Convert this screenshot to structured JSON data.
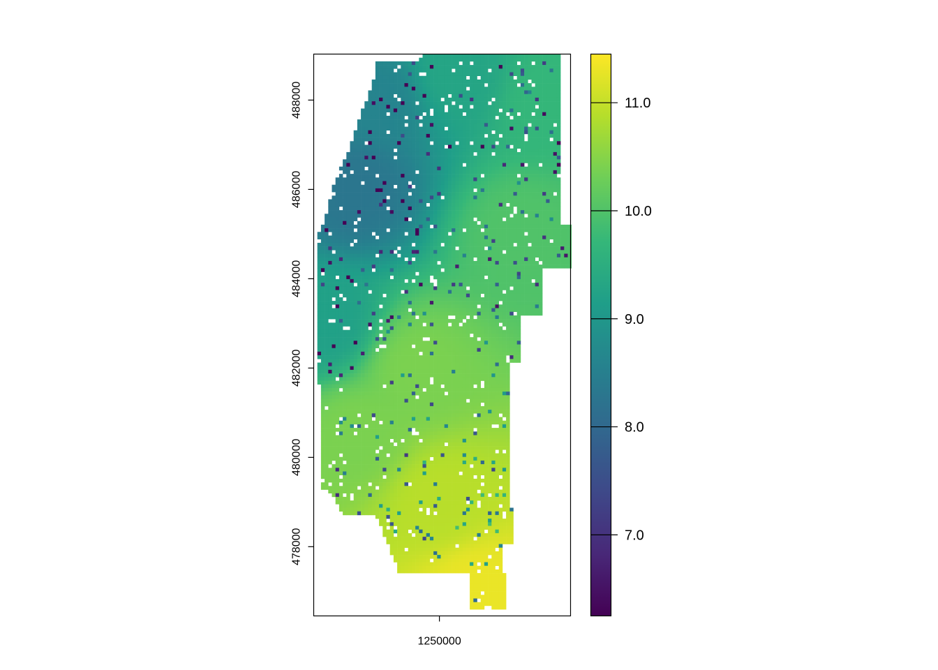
{
  "chart_data": {
    "type": "heatmap",
    "title": "",
    "xlabel": "",
    "ylabel": "",
    "xlim": [
      1222300,
      1278900
    ],
    "ylim": [
      476450,
      489030
    ],
    "x_ticks": [
      {
        "value": 1250000,
        "label": "1250000"
      }
    ],
    "y_ticks": [
      {
        "value": 478000,
        "label": "478000"
      },
      {
        "value": 480000,
        "label": "480000"
      },
      {
        "value": 482000,
        "label": "482000"
      },
      {
        "value": 484000,
        "label": "484000"
      },
      {
        "value": 486000,
        "label": "486000"
      },
      {
        "value": 488000,
        "label": "488000"
      }
    ],
    "colorbar": {
      "range": [
        6.25,
        11.45
      ],
      "ticks": [
        {
          "value": 7.0,
          "label": "7.0"
        },
        {
          "value": 8.0,
          "label": "8.0"
        },
        {
          "value": 9.0,
          "label": "9.0"
        },
        {
          "value": 10.0,
          "label": "10.0"
        },
        {
          "value": 11.0,
          "label": "11.0"
        }
      ],
      "palette": [
        "#440154",
        "#482878",
        "#3e4989",
        "#31688e",
        "#26828e",
        "#1f9e89",
        "#35b779",
        "#6ece58",
        "#b5de2b",
        "#fde725"
      ]
    },
    "grid": false,
    "legend": "colorbar-right",
    "approximate_field": {
      "description_values": "value rises from about 8.2 in the north-west to about 11.3 in the south, about 9.6 in the north-east",
      "sample_points": [
        {
          "x": 1231000,
          "y": 486000,
          "value": 8.3
        },
        {
          "x": 1236000,
          "y": 488000,
          "value": 8.6
        },
        {
          "x": 1254000,
          "y": 488600,
          "value": 9.3
        },
        {
          "x": 1274000,
          "y": 488000,
          "value": 9.7
        },
        {
          "x": 1268000,
          "y": 485000,
          "value": 10.0
        },
        {
          "x": 1225000,
          "y": 483000,
          "value": 9.2
        },
        {
          "x": 1245000,
          "y": 482000,
          "value": 10.4
        },
        {
          "x": 1232000,
          "y": 480500,
          "value": 10.4
        },
        {
          "x": 1250000,
          "y": 479000,
          "value": 10.9
        },
        {
          "x": 1258000,
          "y": 477000,
          "value": 11.3
        }
      ]
    }
  }
}
